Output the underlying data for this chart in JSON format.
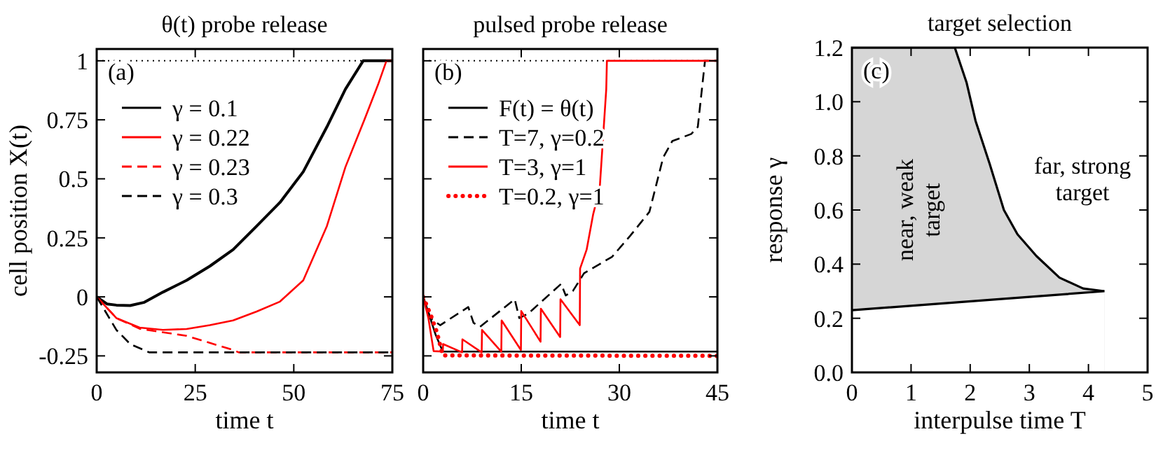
{
  "chart_data": [
    {
      "type": "line",
      "title": "θ(t) probe release",
      "xlabel": "time t",
      "ylabel": "cell position X(t)",
      "xlim": [
        0,
        75
      ],
      "ylim": [
        -0.32,
        1.05
      ],
      "xticks": [
        0,
        25,
        50,
        75
      ],
      "yticks": [
        -0.25,
        0,
        0.25,
        0.5,
        0.75,
        1
      ],
      "legend": "top left",
      "annotations": [
        "(a)"
      ],
      "ref_lines": [
        {
          "axis": "y",
          "value": 1,
          "color": "#000000",
          "line_style": "dotted"
        }
      ],
      "series": [
        {
          "name": "γ = 0.1",
          "color": "#000000",
          "line_style": "solid",
          "x": [
            0,
            2.6,
            5,
            8.5,
            12.1,
            16.8,
            22.8,
            28.7,
            34.6,
            40.6,
            46.5,
            52.4,
            58.4,
            63.1,
            67.6,
            75
          ],
          "values": [
            0,
            -0.03,
            -0.035,
            -0.037,
            -0.023,
            0.02,
            0.07,
            0.13,
            0.2,
            0.3,
            0.4,
            0.53,
            0.72,
            0.88,
            1,
            1
          ]
        },
        {
          "name": "γ = 0.22",
          "color": "#ff0000",
          "line_style": "solid",
          "x": [
            0,
            5,
            10.9,
            16.8,
            22.8,
            28.7,
            34.6,
            40.6,
            46.5,
            52.4,
            58.4,
            63.1,
            67.9,
            71.4,
            73.5,
            75
          ],
          "values": [
            0,
            -0.09,
            -0.13,
            -0.14,
            -0.136,
            -0.12,
            -0.1,
            -0.062,
            -0.02,
            0.07,
            0.3,
            0.55,
            0.75,
            0.9,
            1,
            1
          ]
        },
        {
          "name": "γ = 0.23",
          "color": "#ff0000",
          "line_style": "dashed",
          "x": [
            0,
            5,
            10.9,
            22.8,
            34.6,
            36,
            75
          ],
          "values": [
            0,
            -0.09,
            -0.135,
            -0.165,
            -0.225,
            -0.235,
            -0.235
          ]
        },
        {
          "name": "γ = 0.3",
          "color": "#000000",
          "line_style": "dashed",
          "x": [
            0,
            5,
            8.5,
            13.3,
            75
          ],
          "values": [
            0,
            -0.14,
            -0.2,
            -0.235,
            -0.235
          ]
        }
      ]
    },
    {
      "type": "line",
      "title": "pulsed probe release",
      "xlabel": "time t",
      "xlim": [
        0,
        45
      ],
      "ylim": [
        -0.32,
        1.05
      ],
      "xticks": [
        0,
        15,
        30,
        45
      ],
      "yticks": [
        -0.25,
        0,
        0.25,
        0.5,
        0.75,
        1
      ],
      "tick_labels": "x",
      "legend": "top left",
      "annotations": [
        "(b)"
      ],
      "ref_lines": [
        {
          "axis": "y",
          "value": 1,
          "color": "#000000",
          "line_style": "dotted"
        }
      ],
      "series": [
        {
          "name": "F(t) = θ(t)",
          "color": "#000000",
          "line_style": "solid",
          "x": [
            0,
            0.85,
            1.9,
            3,
            45
          ],
          "values": [
            0,
            -0.07,
            -0.16,
            -0.232,
            -0.232
          ]
        },
        {
          "name": "T=7, γ=0.2",
          "color": "#000000",
          "line_style": "dashed",
          "x": [
            0,
            1.1,
            2.6,
            6.9,
            7.7,
            8.7,
            14,
            14.7,
            16.1,
            21.1,
            21.8,
            22.9,
            24.6,
            28.9,
            31.7,
            34.6,
            36.7,
            38.1,
            41,
            42,
            43.1,
            45
          ],
          "values": [
            0,
            -0.09,
            -0.12,
            -0.043,
            -0.11,
            -0.127,
            -0.01,
            -0.09,
            -0.07,
            0.055,
            0.006,
            0.025,
            0.1,
            0.17,
            0.26,
            0.36,
            0.59,
            0.66,
            0.69,
            0.72,
            1,
            1
          ]
        },
        {
          "name": "T=3, γ=1",
          "color": "#ff0000",
          "line_style": "solid",
          "x": [
            0,
            0.8,
            1.6,
            3,
            3.05,
            5.95,
            6,
            8.95,
            9,
            11.95,
            12,
            14.95,
            15,
            17.95,
            18,
            20.95,
            21,
            23.95,
            24,
            25,
            26,
            27,
            28,
            28.1,
            45
          ],
          "values": [
            0,
            -0.09,
            -0.23,
            -0.232,
            -0.2,
            -0.235,
            -0.18,
            -0.235,
            -0.14,
            -0.232,
            -0.1,
            -0.225,
            -0.06,
            -0.19,
            -0.05,
            -0.17,
            -0.01,
            -0.12,
            0.12,
            0.2,
            0.35,
            0.46,
            0.88,
            1,
            1
          ]
        },
        {
          "name": "T=0.2, γ=1",
          "color": "#ff0000",
          "line_style": "dotted",
          "x": [
            0,
            1.2,
            2.1,
            3,
            45
          ],
          "values": [
            0,
            -0.08,
            -0.15,
            -0.248,
            -0.25
          ]
        }
      ]
    },
    {
      "type": "area",
      "title": "target selection",
      "xlabel": "interpulse time T",
      "ylabel": "response γ",
      "xlim": [
        0,
        5
      ],
      "ylim": [
        0,
        1.2
      ],
      "xticks": [
        0,
        1,
        2,
        3,
        4,
        5
      ],
      "yticks": [
        {
          "value": 0,
          "label": "0.0"
        },
        0.2,
        0.4,
        0.6,
        0.8,
        {
          "value": 1,
          "label": "1.0"
        },
        1.2
      ],
      "annotations": [
        "(c)",
        "near, weak target",
        "far, strong target"
      ],
      "series": [
        {
          "color": "#d6d6d6",
          "x": [
            0,
            1.74,
            1.94,
            2.09,
            2.33,
            2.57,
            2.8,
            3.12,
            3.51,
            3.91,
            4.27
          ],
          "values": [
            1.2,
            1.2,
            1.07,
            0.93,
            0.77,
            0.6,
            0.51,
            0.43,
            0.35,
            0.31,
            0.3
          ]
        },
        {
          "color": "#ffffff",
          "x": [
            0,
            2.33,
            4.27
          ],
          "values": [
            0.23,
            0.268,
            0.3
          ]
        }
      ]
    }
  ]
}
